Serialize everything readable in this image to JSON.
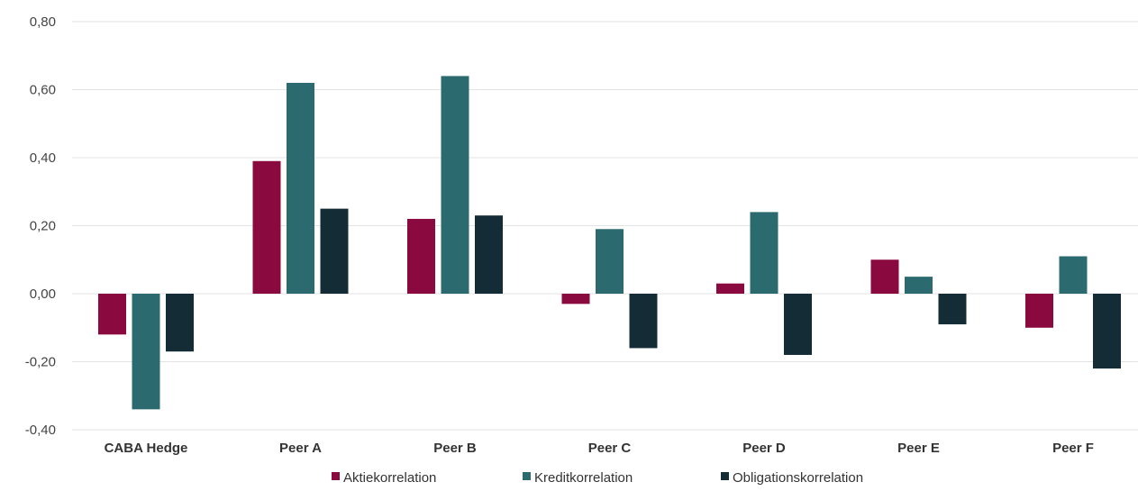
{
  "chart_data": {
    "type": "bar",
    "categories": [
      "CABA Hedge",
      "Peer A",
      "Peer B",
      "Peer C",
      "Peer D",
      "Peer E",
      "Peer F"
    ],
    "series": [
      {
        "name": "Aktiekorrelation",
        "color": "#8a0a3f",
        "values": [
          -0.12,
          0.39,
          0.22,
          -0.03,
          0.03,
          0.1,
          -0.1
        ]
      },
      {
        "name": "Kreditkorrelation",
        "color": "#2b6b70",
        "values": [
          -0.34,
          0.62,
          0.64,
          0.19,
          0.24,
          0.05,
          0.11
        ]
      },
      {
        "name": "Obligationskorrelation",
        "color": "#132c36",
        "values": [
          -0.17,
          0.25,
          0.23,
          -0.16,
          -0.18,
          -0.09,
          -0.22
        ]
      }
    ],
    "ylim": [
      -0.4,
      0.8
    ],
    "yticks": [
      "0,80",
      "0,60",
      "0,40",
      "0,20",
      "0,00",
      "-0,20",
      "-0,40"
    ],
    "ytick_values": [
      0.8,
      0.6,
      0.4,
      0.2,
      0.0,
      -0.2,
      -0.4
    ],
    "grid": true,
    "legend_position": "bottom-center",
    "title": "",
    "xlabel": "",
    "ylabel": ""
  }
}
